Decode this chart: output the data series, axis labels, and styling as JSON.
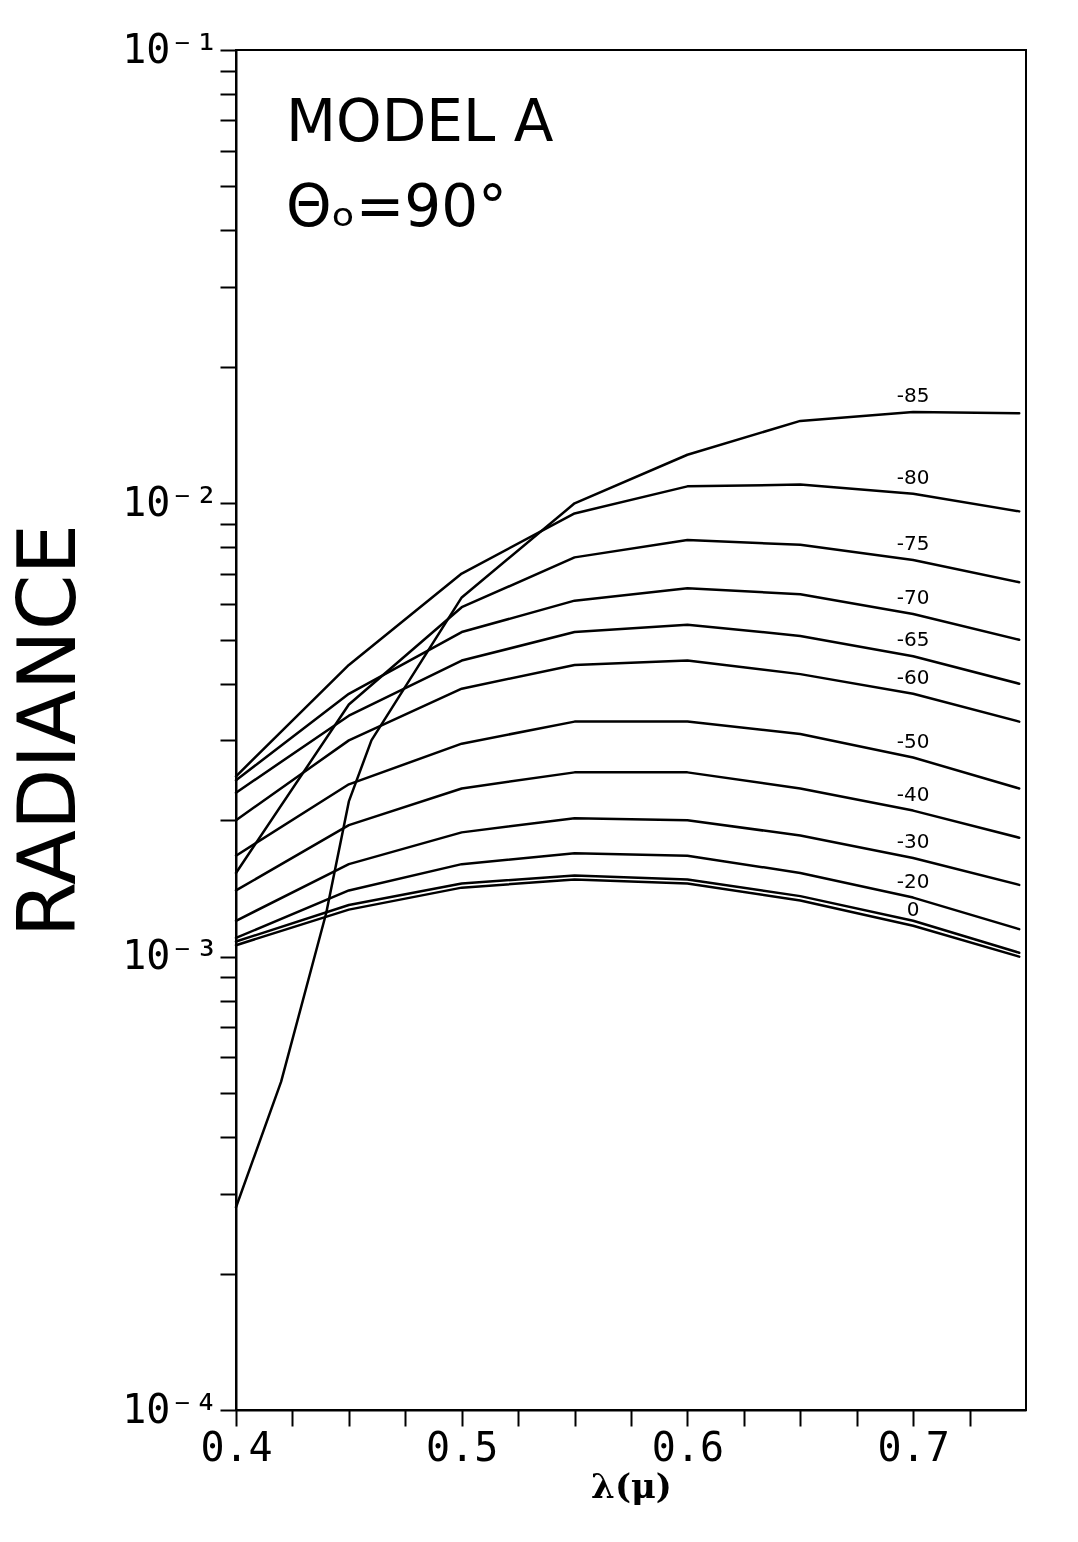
{
  "chart_data": {
    "type": "line",
    "xlabel": "λ(μ)",
    "ylabel": "RADIANCE",
    "annotations": [
      "MODEL A",
      "Θₒ=90°"
    ],
    "log": "y",
    "grid": false,
    "legend": false,
    "marker": "none",
    "line_style": "solid",
    "x": [
      0.4,
      0.45,
      0.5,
      0.55,
      0.6,
      0.65,
      0.7,
      0.747
    ],
    "xlim": [
      0.4,
      0.75
    ],
    "ylim": [
      0.0001,
      0.1
    ],
    "xticks": [
      0.4,
      {
        "value": 0.425,
        "label": null
      },
      {
        "value": 0.45,
        "label": null
      },
      {
        "value": 0.475,
        "label": null
      },
      0.5,
      {
        "value": 0.525,
        "label": null
      },
      {
        "value": 0.55,
        "label": null
      },
      {
        "value": 0.575,
        "label": null
      },
      0.6,
      {
        "value": 0.625,
        "label": null
      },
      {
        "value": 0.65,
        "label": null
      },
      {
        "value": 0.675,
        "label": null
      },
      0.7,
      {
        "value": 0.725,
        "label": null
      }
    ],
    "yticks": [
      {
        "value": 0.0001,
        "label": "10⁻⁴"
      },
      {
        "value": 0.0002,
        "label": null
      },
      {
        "value": 0.0003,
        "label": null
      },
      {
        "value": 0.0004,
        "label": null
      },
      {
        "value": 0.0005,
        "label": null
      },
      {
        "value": 0.0006,
        "label": null
      },
      {
        "value": 0.0007,
        "label": null
      },
      {
        "value": 0.0008,
        "label": null
      },
      {
        "value": 0.0009,
        "label": null
      },
      {
        "value": 0.001,
        "label": "10⁻³"
      },
      {
        "value": 0.002,
        "label": null
      },
      {
        "value": 0.003,
        "label": null
      },
      {
        "value": 0.004,
        "label": null
      },
      {
        "value": 0.005,
        "label": null
      },
      {
        "value": 0.006,
        "label": null
      },
      {
        "value": 0.007,
        "label": null
      },
      {
        "value": 0.008,
        "label": null
      },
      {
        "value": 0.009,
        "label": null
      },
      {
        "value": 0.01,
        "label": "10⁻²"
      },
      {
        "value": 0.02,
        "label": null
      },
      {
        "value": 0.03,
        "label": null
      },
      {
        "value": 0.04,
        "label": null
      },
      {
        "value": 0.05,
        "label": null
      },
      {
        "value": 0.06,
        "label": null
      },
      {
        "value": 0.07,
        "label": null
      },
      {
        "value": 0.08,
        "label": null
      },
      {
        "value": 0.09,
        "label": null
      },
      {
        "value": 0.1,
        "label": "10⁻¹"
      }
    ],
    "series": [
      {
        "name": "-85",
        "color": "#000000",
        "x": [
          0.4,
          0.42,
          0.44,
          0.45,
          0.46,
          0.5,
          0.55,
          0.6,
          0.65,
          0.7,
          0.747
        ],
        "values": [
          0.00028,
          0.00053,
          0.00125,
          0.0022,
          0.003,
          0.0062,
          0.01,
          0.0128,
          0.0152,
          0.0159,
          0.0158
        ]
      },
      {
        "name": "-80",
        "color": "#000000",
        "values": [
          0.0025,
          0.0044,
          0.007,
          0.0095,
          0.0109,
          0.011,
          0.0105,
          0.0096
        ]
      },
      {
        "name": "-75",
        "color": "#000000",
        "values": [
          0.00153,
          0.0036,
          0.0059,
          0.0076,
          0.0083,
          0.0081,
          0.0075,
          0.0067
        ]
      },
      {
        "name": "-70",
        "color": "#000000",
        "values": [
          0.00245,
          0.0038,
          0.0052,
          0.0061,
          0.0065,
          0.0063,
          0.0057,
          0.005
        ]
      },
      {
        "name": "-65",
        "color": "#000000",
        "values": [
          0.0023,
          0.0034,
          0.0045,
          0.0052,
          0.0054,
          0.0051,
          0.0046,
          0.004
        ]
      },
      {
        "name": "-60",
        "color": "#000000",
        "values": [
          0.002,
          0.003,
          0.0039,
          0.0044,
          0.0045,
          0.0042,
          0.0038,
          0.0033
        ]
      },
      {
        "name": "-50",
        "color": "#000000",
        "values": [
          0.00167,
          0.0024,
          0.00295,
          0.0033,
          0.0033,
          0.0031,
          0.00275,
          0.00235
        ]
      },
      {
        "name": "-40",
        "color": "#000000",
        "values": [
          0.0014,
          0.00195,
          0.00235,
          0.00255,
          0.00255,
          0.00235,
          0.0021,
          0.00183
        ]
      },
      {
        "name": "-30",
        "color": "#000000",
        "values": [
          0.0012,
          0.0016,
          0.00188,
          0.00202,
          0.002,
          0.00185,
          0.00165,
          0.00144
        ]
      },
      {
        "name": "-20",
        "color": "#000000",
        "values": [
          0.0011,
          0.0014,
          0.0016,
          0.00169,
          0.00167,
          0.00153,
          0.00135,
          0.00115
        ]
      },
      {
        "color": "#000000",
        "values": [
          0.00108,
          0.0013,
          0.00145,
          0.00151,
          0.00148,
          0.00136,
          0.0012,
          0.00102
        ]
      },
      {
        "name": "0",
        "color": "#000000",
        "values": [
          0.00106,
          0.00127,
          0.00142,
          0.00148,
          0.00145,
          0.00133,
          0.00117,
          0.001
        ]
      }
    ]
  }
}
